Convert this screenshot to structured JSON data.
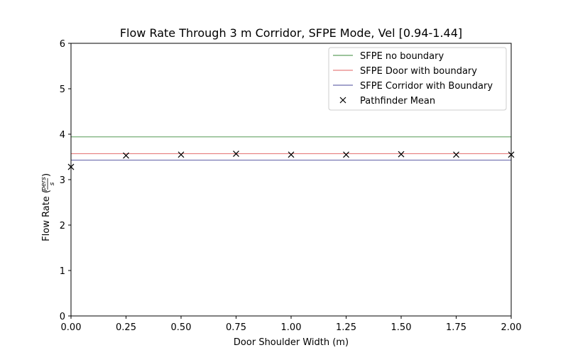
{
  "chart_data": {
    "type": "line",
    "title": "Flow Rate Through 3 m Corridor, SFPE Mode, Vel [0.94-1.44]",
    "xlabel": "Door Shoulder Width (m)",
    "ylabel": "Flow Rate (pers/s)",
    "xlim": [
      0,
      2
    ],
    "ylim": [
      0,
      6
    ],
    "x_ticks": [
      "0.00",
      "0.25",
      "0.50",
      "0.75",
      "1.00",
      "1.25",
      "1.50",
      "1.75",
      "2.00"
    ],
    "y_ticks": [
      "0",
      "1",
      "2",
      "3",
      "4",
      "5",
      "6"
    ],
    "grid": false,
    "legend_position": "top-right",
    "series": [
      {
        "name": "SFPE no boundary",
        "kind": "hline",
        "value": 3.94,
        "color": "#3a8a3a"
      },
      {
        "name": "SFPE Door with boundary",
        "kind": "hline",
        "value": 3.57,
        "color": "#e06060"
      },
      {
        "name": "SFPE Corridor with Boundary",
        "kind": "hline",
        "value": 3.43,
        "color": "#4a4a9a"
      },
      {
        "name": "Pathfinder Mean",
        "kind": "scatter",
        "marker": "x",
        "color": "#000000",
        "x": [
          0.0,
          0.25,
          0.5,
          0.75,
          1.0,
          1.25,
          1.5,
          1.75,
          2.0
        ],
        "y": [
          3.28,
          3.53,
          3.55,
          3.57,
          3.55,
          3.55,
          3.56,
          3.55,
          3.55
        ]
      }
    ]
  }
}
